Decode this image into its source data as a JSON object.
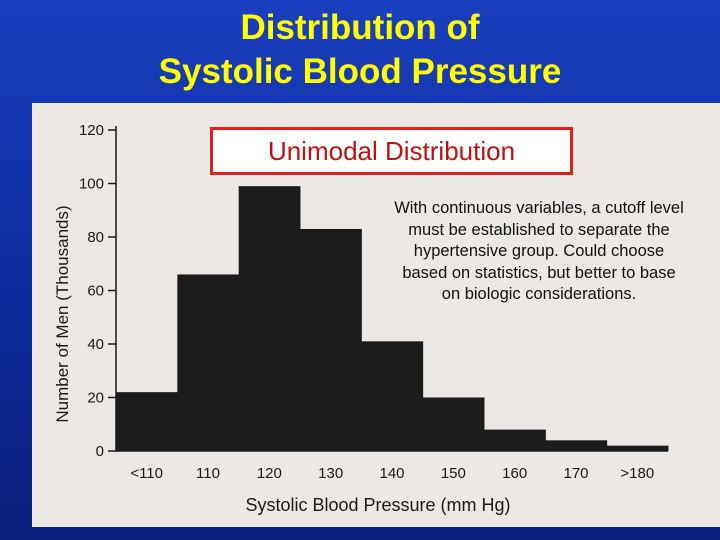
{
  "slide": {
    "title_line1": "Distribution of",
    "title_line2": "Systolic Blood Pressure"
  },
  "callout": {
    "label": "Unimodal Distribution",
    "note": "With continuous variables, a cutoff level must be established to separate the hypertensive group.  Could choose based on statistics, but better to base on biologic considerations."
  },
  "colors": {
    "title": "#ffff00",
    "background": "#1a3fbf",
    "figure_background": "#ece9e4",
    "bars": "#1c1c1c",
    "callout_border": "#e0201a",
    "callout_text": "#c01010"
  },
  "chart_data": {
    "type": "bar",
    "histogram": true,
    "categories": [
      "<110",
      "110",
      "120",
      "130",
      "140",
      "150",
      "160",
      "170",
      ">180"
    ],
    "values": [
      22,
      66,
      99,
      83,
      41,
      20,
      8,
      4,
      2
    ],
    "xlabel": "Systolic Blood Pressure (mm Hg)",
    "ylabel": "Number of Men (Thousands)",
    "ylim": [
      0,
      120
    ],
    "yticks": [
      0,
      20,
      40,
      60,
      80,
      100,
      120
    ],
    "grid": false,
    "legend": "none"
  }
}
